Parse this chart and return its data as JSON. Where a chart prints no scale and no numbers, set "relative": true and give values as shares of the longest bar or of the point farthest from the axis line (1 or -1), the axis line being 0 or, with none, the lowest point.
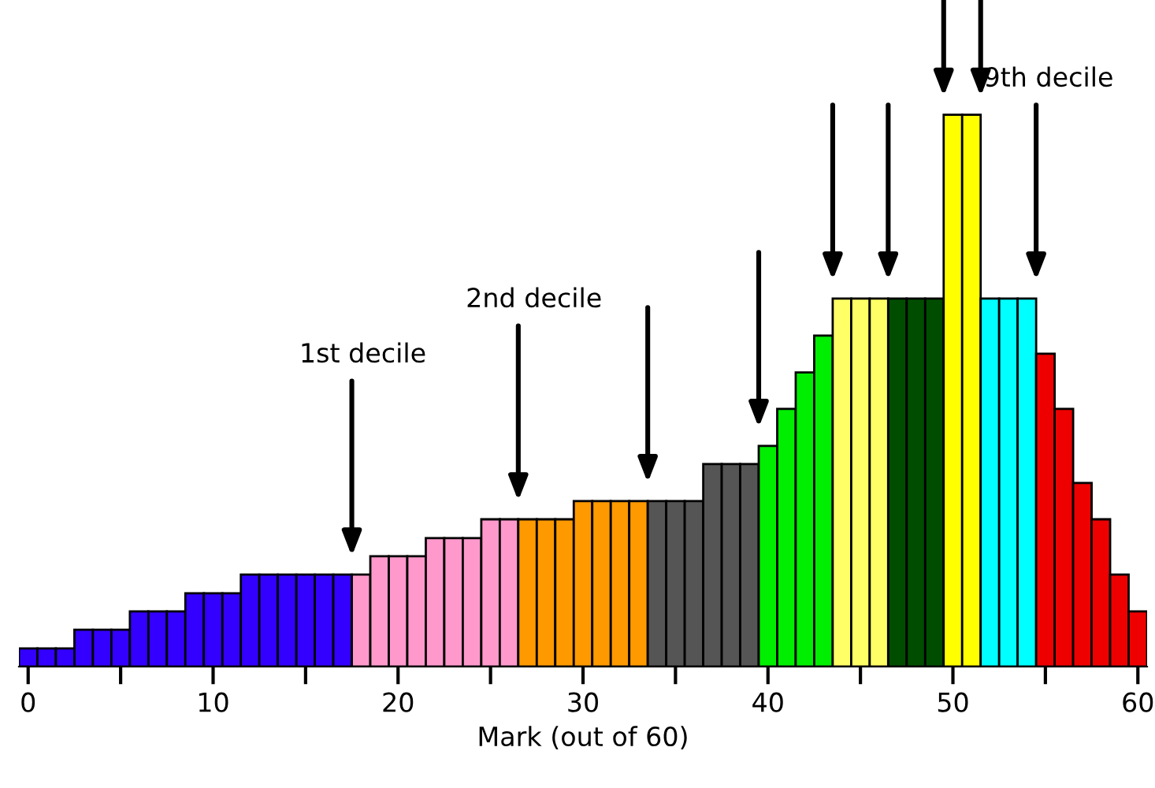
{
  "chart_data": {
    "type": "bar",
    "xlabel": "Mark (out of 60)",
    "relative": true,
    "x": [
      0,
      1,
      2,
      3,
      4,
      5,
      6,
      7,
      8,
      9,
      10,
      11,
      12,
      13,
      14,
      15,
      16,
      17,
      18,
      19,
      20,
      21,
      22,
      23,
      24,
      25,
      26,
      27,
      28,
      29,
      30,
      31,
      32,
      33,
      34,
      35,
      36,
      37,
      38,
      39,
      40,
      41,
      42,
      43,
      44,
      45,
      46,
      47,
      48,
      49,
      50,
      51,
      52,
      53,
      54,
      55,
      56,
      57,
      58,
      59,
      60
    ],
    "values": [
      0.033,
      0.033,
      0.033,
      0.067,
      0.067,
      0.067,
      0.1,
      0.1,
      0.1,
      0.133,
      0.133,
      0.133,
      0.167,
      0.167,
      0.167,
      0.167,
      0.167,
      0.167,
      0.167,
      0.2,
      0.2,
      0.2,
      0.233,
      0.233,
      0.233,
      0.267,
      0.267,
      0.267,
      0.267,
      0.267,
      0.3,
      0.3,
      0.3,
      0.3,
      0.3,
      0.3,
      0.3,
      0.367,
      0.367,
      0.367,
      0.4,
      0.467,
      0.533,
      0.6,
      0.667,
      0.667,
      0.667,
      0.667,
      0.667,
      0.667,
      1,
      1,
      0.667,
      0.667,
      0.667,
      0.567,
      0.467,
      0.333,
      0.267,
      0.167,
      0.1
    ],
    "colors": [
      "#3300ff",
      "#3300ff",
      "#3300ff",
      "#3300ff",
      "#3300ff",
      "#3300ff",
      "#3300ff",
      "#3300ff",
      "#3300ff",
      "#3300ff",
      "#3300ff",
      "#3300ff",
      "#3300ff",
      "#3300ff",
      "#3300ff",
      "#3300ff",
      "#3300ff",
      "#3300ff",
      "#ff99cc",
      "#ff99cc",
      "#ff99cc",
      "#ff99cc",
      "#ff99cc",
      "#ff99cc",
      "#ff99cc",
      "#ff99cc",
      "#ff99cc",
      "#ff9900",
      "#ff9900",
      "#ff9900",
      "#ff9900",
      "#ff9900",
      "#ff9900",
      "#ff9900",
      "#555555",
      "#555555",
      "#555555",
      "#555555",
      "#555555",
      "#555555",
      "#00ee00",
      "#00ee00",
      "#00ee00",
      "#00ee00",
      "#ffff66",
      "#ffff66",
      "#ffff66",
      "#004d00",
      "#004d00",
      "#004d00",
      "#ffff00",
      "#ffff00",
      "#00ffff",
      "#00ffff",
      "#00ffff",
      "#ee0000",
      "#ee0000",
      "#ee0000",
      "#ee0000",
      "#ee0000",
      "#ee0000"
    ],
    "xlim": [
      -0.5,
      60.5
    ],
    "xticks": [
      0,
      {
        "value": 5,
        "label": null
      },
      10,
      {
        "value": 15,
        "label": null
      },
      20,
      {
        "value": 25,
        "label": null
      },
      30,
      {
        "value": 35,
        "label": null
      },
      40,
      {
        "value": 45,
        "label": null
      },
      50,
      {
        "value": 55,
        "label": null
      },
      60
    ],
    "grid": false,
    "legend": false,
    "annotations": [
      "1st decile",
      "2nd decile",
      "9th decile"
    ]
  }
}
